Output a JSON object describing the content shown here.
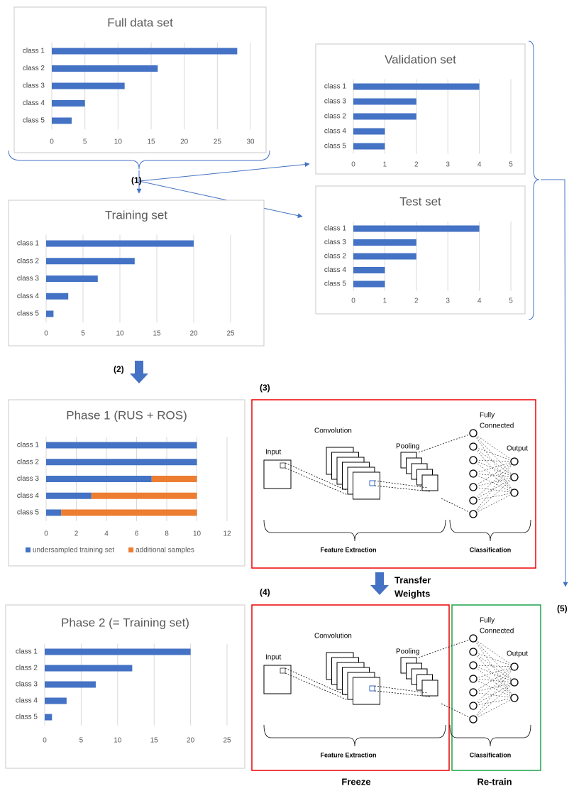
{
  "chart_data": [
    {
      "type": "barh",
      "title": "Full data set",
      "categories": [
        "class 1",
        "class 2",
        "class 3",
        "class 4",
        "class 5"
      ],
      "values": [
        28,
        16,
        11,
        5,
        3
      ],
      "color": "#4472c4",
      "xlim": [
        0,
        30
      ],
      "xticks": [
        0,
        5,
        10,
        15,
        20,
        25,
        30
      ],
      "grid": true
    },
    {
      "type": "barh",
      "title": "Validation set",
      "categories": [
        "class 1",
        "class 3",
        "class 2",
        "class 4",
        "class 5"
      ],
      "values": [
        4,
        2,
        2,
        1,
        1
      ],
      "color": "#4472c4",
      "xlim": [
        0,
        5
      ],
      "xticks": [
        0,
        1,
        2,
        3,
        4,
        5
      ],
      "grid": true
    },
    {
      "type": "barh",
      "title": "Test set",
      "categories": [
        "class 1",
        "class 3",
        "class 2",
        "class 4",
        "class 5"
      ],
      "values": [
        4,
        2,
        2,
        1,
        1
      ],
      "color": "#4472c4",
      "xlim": [
        0,
        5
      ],
      "xticks": [
        0,
        1,
        2,
        3,
        4,
        5
      ],
      "grid": true
    },
    {
      "type": "barh",
      "title": "Training set",
      "categories": [
        "class 1",
        "class 2",
        "class 3",
        "class 4",
        "class 5"
      ],
      "values": [
        20,
        12,
        7,
        3,
        1
      ],
      "color": "#4472c4",
      "xlim": [
        0,
        25
      ],
      "xticks": [
        0,
        5,
        10,
        15,
        20,
        25
      ],
      "grid": true
    },
    {
      "type": "stacked_barh",
      "title": "Phase 1 (RUS + ROS)",
      "categories": [
        "class 1",
        "class 2",
        "class 3",
        "class 4",
        "class 5"
      ],
      "series": [
        {
          "name": "undersampled training set",
          "color": "#4472c4",
          "values": [
            10,
            10,
            7,
            3,
            1
          ]
        },
        {
          "name": "additional samples",
          "color": "#ed7d31",
          "values": [
            0,
            0,
            3,
            7,
            9
          ]
        }
      ],
      "xlim": [
        0,
        12
      ],
      "xticks": [
        0,
        2,
        4,
        6,
        8,
        10,
        12
      ],
      "grid": true,
      "legend": "bottom"
    },
    {
      "type": "barh",
      "title": "Phase 2 (= Training set)",
      "categories": [
        "class 1",
        "class 2",
        "class 3",
        "class 4",
        "class 5"
      ],
      "values": [
        20,
        12,
        7,
        3,
        1
      ],
      "color": "#4472c4",
      "xlim": [
        0,
        25
      ],
      "xticks": [
        0,
        5,
        10,
        15,
        20,
        25
      ],
      "grid": true
    }
  ],
  "steps": [
    "(1)",
    "(2)",
    "(3)",
    "(4)",
    "(5)"
  ],
  "transfer": [
    "Transfer",
    "Weights"
  ],
  "freeze": "Freeze",
  "retrain": "Re-train",
  "networks": [
    {
      "input": "Input",
      "convolution": "Convolution",
      "pooling": "Pooling",
      "fully_connected": [
        "Fully",
        "Connected"
      ],
      "output": "Output",
      "feature_extraction": "Feature Extraction",
      "classification": "Classification"
    },
    {
      "input": "Input",
      "convolution": "Convolution",
      "pooling": "Pooling",
      "fully_connected": [
        "Fully",
        "Connected"
      ],
      "output": "Output",
      "feature_extraction": "Feature Extraction",
      "classification": "Classification"
    }
  ]
}
